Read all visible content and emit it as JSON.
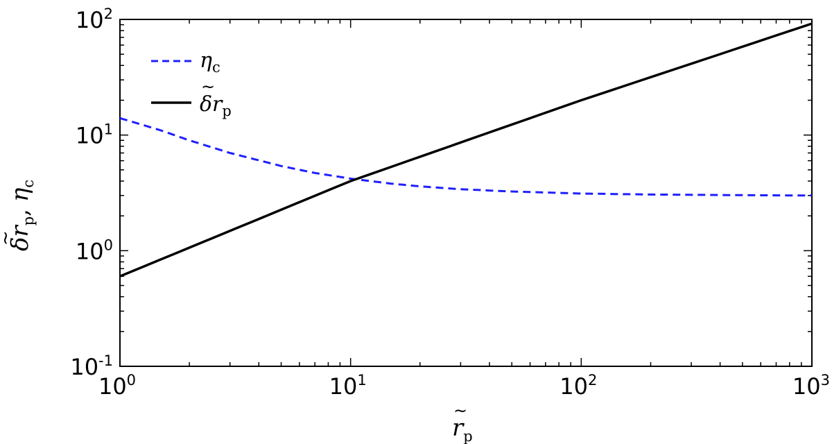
{
  "chart_data": {
    "type": "line",
    "xscale": "log",
    "yscale": "log",
    "xlim": [
      1,
      1000
    ],
    "ylim": [
      0.1,
      100
    ],
    "xlabel": "r̃p",
    "ylabel": "δr̃p, ηc",
    "x_ticks": [
      {
        "value": 1,
        "base": "10",
        "exp": "0"
      },
      {
        "value": 10,
        "base": "10",
        "exp": "1"
      },
      {
        "value": 100,
        "base": "10",
        "exp": "2"
      },
      {
        "value": 1000,
        "base": "10",
        "exp": "3"
      }
    ],
    "y_ticks": [
      {
        "value": 0.1,
        "base": "10",
        "exp": "-1"
      },
      {
        "value": 1,
        "base": "10",
        "exp": "0"
      },
      {
        "value": 10,
        "base": "10",
        "exp": "1"
      },
      {
        "value": 100,
        "base": "10",
        "exp": "2"
      }
    ],
    "legend_position": "top-left",
    "grid": false,
    "series": [
      {
        "name": "ηc",
        "color": "#1f1fff",
        "style": "dashed",
        "x": [
          1,
          1.5,
          2,
          3,
          5,
          7,
          10,
          15,
          20,
          30,
          50,
          100,
          200,
          500,
          1000
        ],
        "y": [
          14,
          11,
          9.0,
          7.0,
          5.4,
          4.7,
          4.2,
          3.8,
          3.6,
          3.4,
          3.25,
          3.12,
          3.06,
          3.02,
          3.0
        ]
      },
      {
        "name": "δr̃p",
        "color": "#000000",
        "style": "solid",
        "x": [
          1,
          10,
          100,
          1000
        ],
        "y": [
          0.6,
          4.0,
          20,
          92
        ]
      }
    ]
  },
  "labels": {
    "x_main": "r",
    "x_sub": "p",
    "y_main": "δr",
    "y_sub": "p",
    "y_sep": ",",
    "y_eta": "η",
    "y_eta_sub": "c",
    "legend_eta": "η",
    "legend_eta_sub": "c",
    "legend_dr": "δr",
    "legend_dr_sub": "p"
  }
}
